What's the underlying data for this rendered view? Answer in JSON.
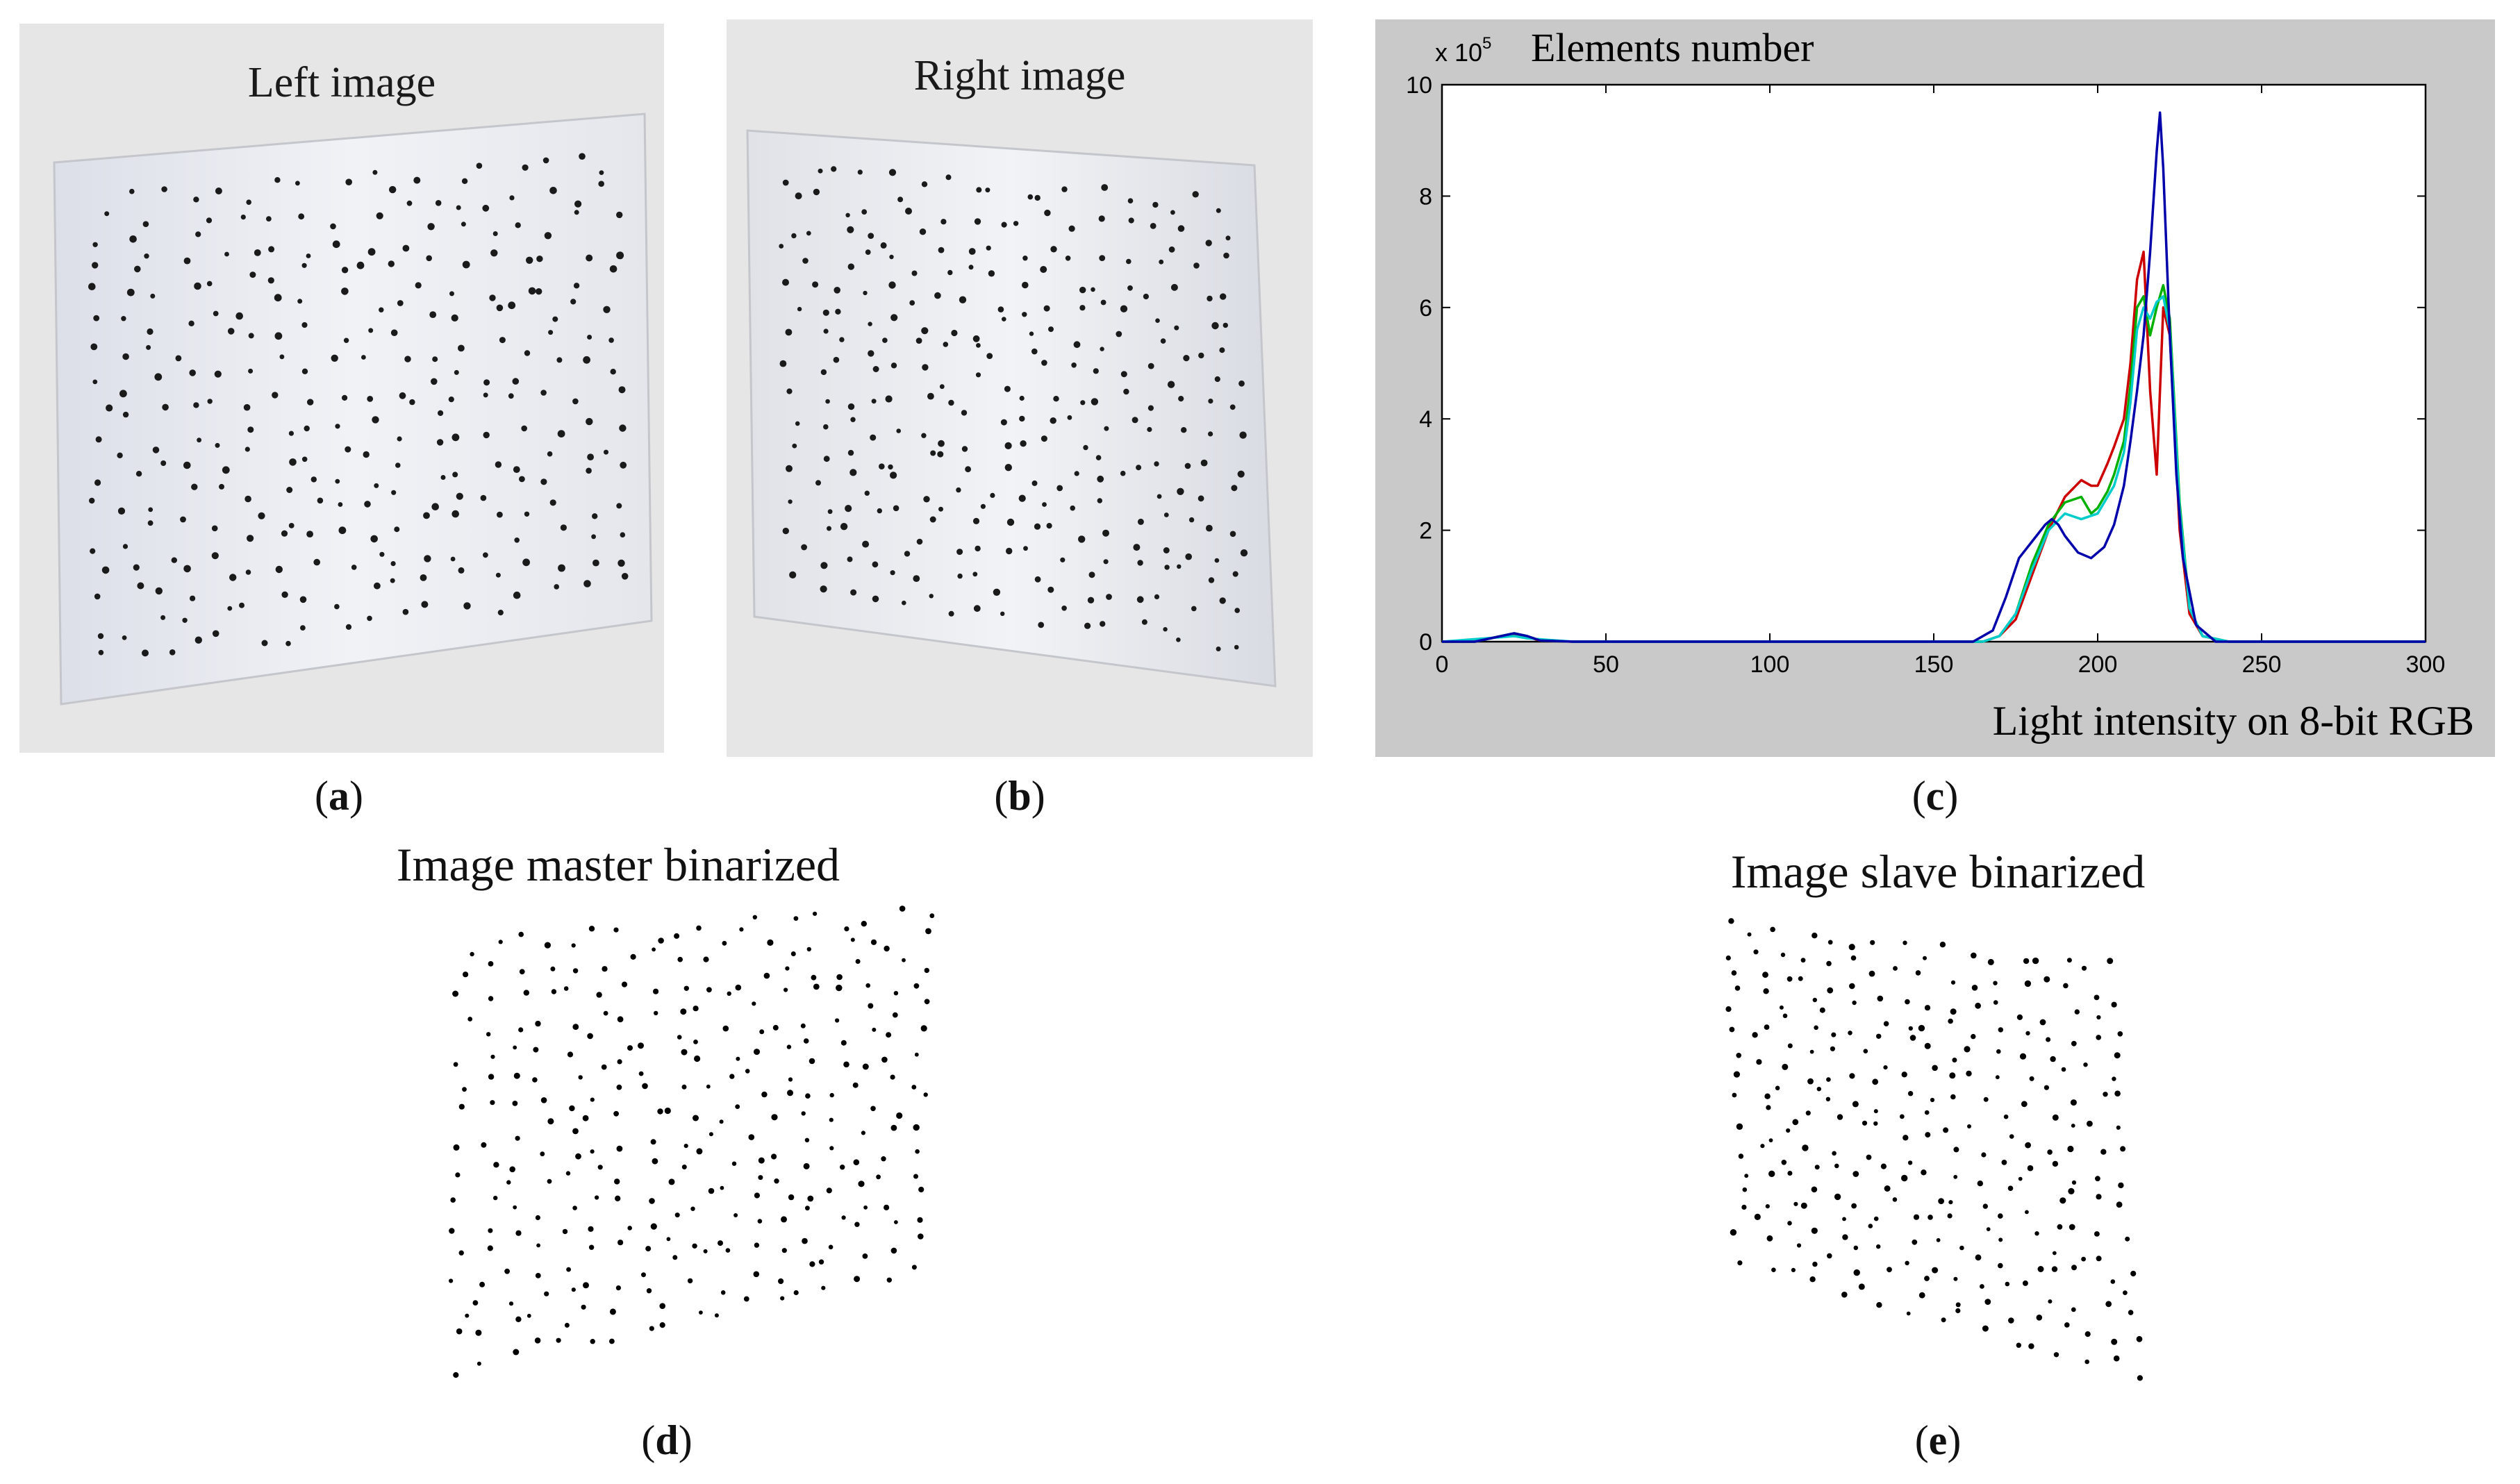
{
  "panels": {
    "a": {
      "title": "Left image",
      "label": "a"
    },
    "b": {
      "title": "Right image",
      "label": "b"
    },
    "c": {
      "label": "c"
    },
    "d": {
      "title": "Image master binarized",
      "label": "d"
    },
    "e": {
      "title": "Image slave binarized",
      "label": "e"
    }
  },
  "chart_data": {
    "type": "line",
    "title": "Elements number",
    "y_multiplier_label": "x 10",
    "y_multiplier_exponent": "5",
    "xlabel": "Light intensity on 8-bit RGB",
    "ylabel": "",
    "xlim": [
      0,
      300
    ],
    "ylim": [
      0,
      10
    ],
    "xticks": [
      0,
      50,
      100,
      150,
      200,
      250,
      300
    ],
    "yticks": [
      0,
      2,
      4,
      6,
      8,
      10
    ],
    "grid": false,
    "legend": "none",
    "series": [
      {
        "color": "#cc0000",
        "x": [
          0,
          10,
          18,
          22,
          26,
          30,
          40,
          100,
          150,
          165,
          170,
          175,
          180,
          185,
          190,
          195,
          198,
          200,
          203,
          205,
          208,
          210,
          212,
          214,
          216,
          218,
          220,
          222,
          225,
          228,
          232,
          240,
          300
        ],
        "y": [
          0,
          0,
          0.1,
          0.12,
          0.08,
          0.02,
          0,
          0,
          0,
          0,
          0.1,
          0.4,
          1.2,
          2.0,
          2.6,
          2.9,
          2.8,
          2.8,
          3.2,
          3.5,
          4.0,
          5.0,
          6.5,
          7.0,
          4.5,
          3.0,
          6.0,
          5.5,
          2.0,
          0.5,
          0.1,
          0,
          0
        ]
      },
      {
        "color": "#00b000",
        "x": [
          0,
          10,
          18,
          22,
          26,
          30,
          40,
          100,
          150,
          165,
          170,
          175,
          180,
          185,
          190,
          195,
          198,
          200,
          203,
          205,
          208,
          210,
          212,
          214,
          216,
          218,
          220,
          222,
          225,
          228,
          232,
          240,
          300
        ],
        "y": [
          0,
          0,
          0.1,
          0.15,
          0.1,
          0.02,
          0,
          0,
          0,
          0,
          0.1,
          0.5,
          1.4,
          2.1,
          2.5,
          2.6,
          2.3,
          2.4,
          2.7,
          3.0,
          3.6,
          4.6,
          6.0,
          6.2,
          5.5,
          6.0,
          6.4,
          5.8,
          2.5,
          0.6,
          0.1,
          0,
          0
        ]
      },
      {
        "color": "#00cccc",
        "x": [
          0,
          18,
          22,
          26,
          40,
          150,
          165,
          170,
          175,
          180,
          185,
          190,
          195,
          200,
          205,
          208,
          210,
          212,
          214,
          216,
          218,
          220,
          222,
          225,
          228,
          232,
          240,
          300
        ],
        "y": [
          0,
          0.08,
          0.1,
          0.06,
          0,
          0,
          0,
          0.1,
          0.5,
          1.3,
          2.0,
          2.3,
          2.2,
          2.3,
          2.8,
          3.4,
          4.3,
          5.6,
          6.0,
          5.8,
          6.1,
          6.2,
          5.6,
          2.4,
          0.6,
          0.1,
          0,
          0
        ]
      },
      {
        "color": "#0000aa",
        "x": [
          0,
          10,
          18,
          22,
          26,
          30,
          40,
          100,
          150,
          162,
          168,
          172,
          176,
          180,
          184,
          186,
          188,
          190,
          194,
          198,
          202,
          205,
          208,
          210,
          212,
          214,
          216,
          218,
          219,
          220,
          222,
          224,
          226,
          230,
          236,
          300
        ],
        "y": [
          0,
          0,
          0.1,
          0.15,
          0.1,
          0.02,
          0,
          0,
          0,
          0,
          0.2,
          0.8,
          1.5,
          1.8,
          2.1,
          2.2,
          2.1,
          1.9,
          1.6,
          1.5,
          1.7,
          2.1,
          2.8,
          3.6,
          4.5,
          5.5,
          7.0,
          8.8,
          9.5,
          8.5,
          5.5,
          3.0,
          1.5,
          0.3,
          0,
          0
        ]
      }
    ]
  }
}
